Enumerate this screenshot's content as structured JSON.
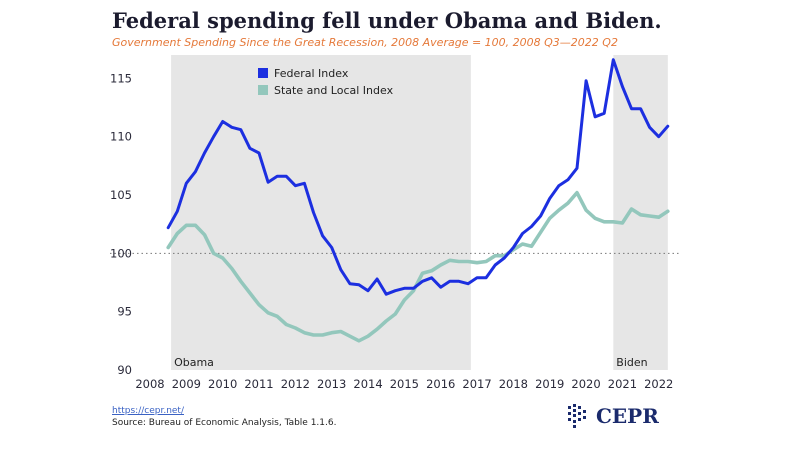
{
  "title": "Federal spending fell under Obama and Biden.",
  "subtitle": "Government Spending Since the Great Recession, 2008 Average = 100, 2008 Q3—2022 Q2",
  "source": {
    "link": "https://cepr.net/",
    "text": "Source: Bureau of Economic Analysis, Table 1.1.6."
  },
  "logo": {
    "text": "CEPR"
  },
  "colors": {
    "federal": "#1c2fe0",
    "state": "#93c7bc",
    "shade": "#e6e6e6"
  },
  "chart_data": {
    "type": "line",
    "title": "Federal spending fell under Obama and Biden.",
    "xlim": [
      2008,
      2022.2
    ],
    "ylim": [
      90,
      117
    ],
    "x_ticks": [
      2008,
      2009,
      2010,
      2011,
      2012,
      2013,
      2014,
      2015,
      2016,
      2017,
      2018,
      2019,
      2020,
      2021,
      2022
    ],
    "y_ticks": [
      90,
      95,
      100,
      105,
      110,
      115
    ],
    "reference_line": {
      "y": 100,
      "style": "dotted"
    },
    "grid": false,
    "legend_position": "top-left",
    "shaded_periods": [
      {
        "label": "Obama",
        "start": 2008.58,
        "end": 2016.83
      },
      {
        "label": "Biden",
        "start": 2020.75,
        "end": 2022.25
      }
    ],
    "x": [
      2008.5,
      2008.75,
      2009.0,
      2009.25,
      2009.5,
      2009.75,
      2010.0,
      2010.25,
      2010.5,
      2010.75,
      2011.0,
      2011.25,
      2011.5,
      2011.75,
      2012.0,
      2012.25,
      2012.5,
      2012.75,
      2013.0,
      2013.25,
      2013.5,
      2013.75,
      2014.0,
      2014.25,
      2014.5,
      2014.75,
      2015.0,
      2015.25,
      2015.5,
      2015.75,
      2016.0,
      2016.25,
      2016.5,
      2016.75,
      2017.0,
      2017.25,
      2017.5,
      2017.75,
      2018.0,
      2018.25,
      2018.5,
      2018.75,
      2019.0,
      2019.25,
      2019.5,
      2019.75,
      2020.0,
      2020.25,
      2020.5,
      2020.75,
      2021.0,
      2021.25,
      2021.5,
      2021.75,
      2022.0,
      2022.25
    ],
    "series": [
      {
        "name": "Federal Index",
        "values": [
          102.2,
          103.6,
          106.0,
          107.0,
          108.6,
          110.0,
          111.3,
          110.8,
          110.6,
          109.0,
          108.6,
          106.1,
          106.6,
          106.6,
          105.8,
          106.0,
          103.5,
          101.5,
          100.5,
          98.6,
          97.4,
          97.3,
          96.8,
          97.8,
          96.5,
          96.8,
          97.0,
          97.0,
          97.6,
          97.9,
          97.1,
          97.6,
          97.6,
          97.4,
          97.9,
          97.9,
          99.0,
          99.6,
          100.5,
          101.7,
          102.3,
          103.2,
          104.7,
          105.8,
          106.3,
          107.3,
          114.8,
          111.7,
          112.0,
          116.6,
          114.3,
          112.4,
          112.4,
          110.8,
          110.0,
          110.9
        ]
      },
      {
        "name": "State and Local Index",
        "values": [
          100.5,
          101.7,
          102.4,
          102.4,
          101.6,
          100.0,
          99.6,
          98.7,
          97.6,
          96.6,
          95.6,
          94.9,
          94.6,
          93.9,
          93.6,
          93.2,
          93.0,
          93.0,
          93.2,
          93.3,
          92.9,
          92.5,
          92.9,
          93.5,
          94.2,
          94.8,
          96.0,
          96.8,
          98.3,
          98.5,
          99.0,
          99.4,
          99.3,
          99.3,
          99.2,
          99.3,
          99.8,
          99.8,
          100.3,
          100.8,
          100.6,
          101.8,
          103.0,
          103.7,
          104.3,
          105.2,
          103.7,
          103.0,
          102.7,
          102.7,
          102.6,
          103.8,
          103.3,
          103.2,
          103.1,
          103.6
        ]
      }
    ]
  }
}
